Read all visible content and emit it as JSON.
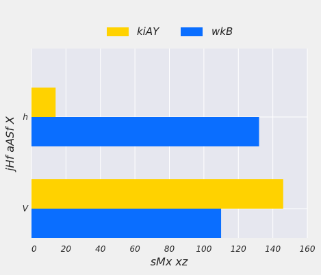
{
  "chart_data": {
    "type": "bar",
    "orientation": "horizontal",
    "categories": [
      "h",
      "V"
    ],
    "series": [
      {
        "name": "kiAY",
        "values": [
          14,
          146
        ],
        "color": "#ffd200"
      },
      {
        "name": "wkB",
        "values": [
          132,
          110
        ],
        "color": "#0a6eff"
      }
    ],
    "xlabel": "sMx  xz",
    "ylabel": "jHf aASf X",
    "xlim": [
      0,
      160
    ],
    "xticks": [
      0,
      20,
      40,
      60,
      80,
      100,
      120,
      140,
      160
    ],
    "grid": true,
    "legend_position": "top-center",
    "plot_background": "#e6e7ef",
    "figure_background": "#f0f0f0",
    "grid_color": "#ffffff"
  }
}
